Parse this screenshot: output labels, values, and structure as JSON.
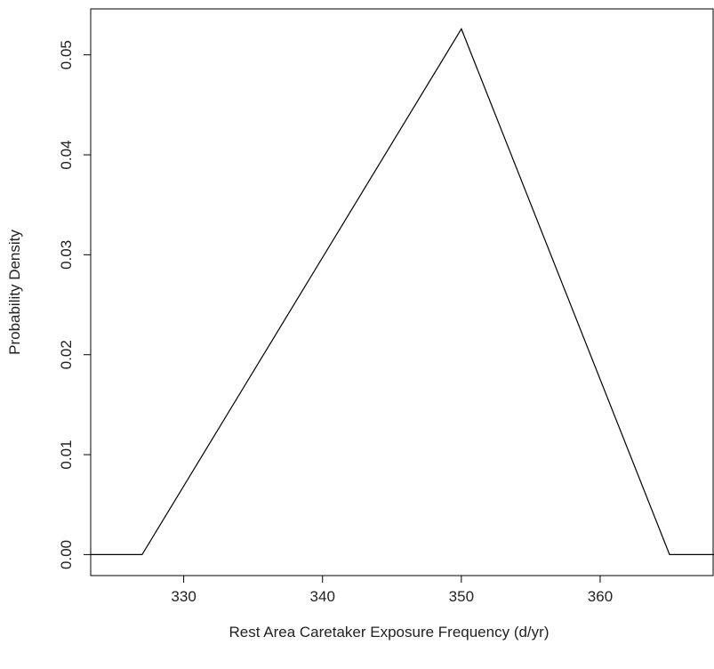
{
  "chart_data": {
    "type": "line",
    "title": "",
    "xlabel": "Rest Area Caretaker Exposure Frequency (d/yr)",
    "ylabel": "Probability Density",
    "xlim": [
      323.3,
      368.2
    ],
    "ylim": [
      -0.0021,
      0.0546
    ],
    "x_ticks": [
      330,
      340,
      350,
      360
    ],
    "x_tick_labels": [
      "330",
      "340",
      "350",
      "360"
    ],
    "y_ticks": [
      0.0,
      0.01,
      0.02,
      0.03,
      0.04,
      0.05
    ],
    "y_tick_labels": [
      "0.00",
      "0.01",
      "0.02",
      "0.03",
      "0.04",
      "0.05"
    ],
    "grid": false,
    "series": [
      {
        "x": [
          323.3,
          327.0,
          350.0,
          365.0,
          368.2
        ],
        "y": [
          0.0,
          0.0,
          0.0526,
          0.0,
          0.0
        ]
      }
    ]
  },
  "colors": {
    "line": "#000000",
    "axis": "#000000",
    "box": "#000000"
  }
}
